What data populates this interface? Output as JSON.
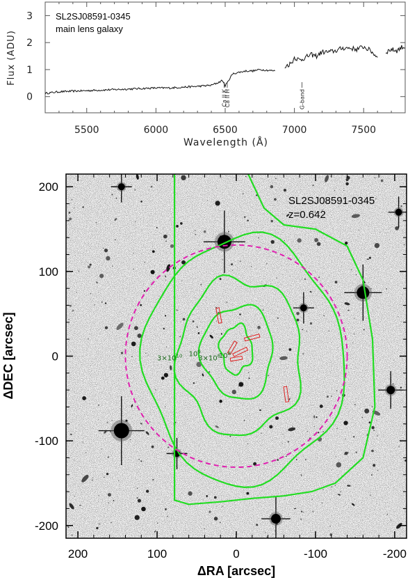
{
  "chart_data": [
    {
      "type": "line",
      "title": "",
      "annotation_lines": [
        "SL2SJ08591-0345",
        "main lens galaxy"
      ],
      "xlabel": "Wavelength (Å)",
      "ylabel": "Flux (ADU)",
      "xlim": [
        5200,
        7800
      ],
      "ylim": [
        -0.6,
        3.5
      ],
      "xticks": [
        5500,
        6000,
        6500,
        7000,
        7500
      ],
      "yticks": [
        0,
        1,
        2,
        3
      ],
      "line_labels": [
        {
          "text": "Ca II K",
          "x": 6493
        },
        {
          "text": "Ca II H",
          "x": 6515
        },
        {
          "text": "G-band",
          "x": 7055
        }
      ],
      "series": [
        {
          "segments": [
            {
              "x": [
                5200,
                5300,
                5400,
                5500,
                5600,
                5700,
                5800,
                5900,
                6000,
                6100,
                6200,
                6300,
                6400,
                6450,
                6480,
                6500,
                6520,
                6540,
                6560,
                6600,
                6650,
                6700,
                6750,
                6800,
                6860
              ],
              "y": [
                0.12,
                0.18,
                0.2,
                0.22,
                0.24,
                0.26,
                0.28,
                0.3,
                0.32,
                0.32,
                0.35,
                0.38,
                0.42,
                0.52,
                0.6,
                0.4,
                0.55,
                0.75,
                0.85,
                0.9,
                0.95,
                0.95,
                1.0,
                0.98,
                0.95
              ]
            },
            {
              "x": [
                6930,
                6980,
                7000,
                7040,
                7080,
                7120,
                7160,
                7200,
                7250,
                7300,
                7350,
                7400,
                7450,
                7500,
                7550,
                7600
              ],
              "y": [
                1.1,
                1.25,
                1.45,
                1.35,
                1.45,
                1.55,
                1.5,
                1.65,
                1.65,
                1.7,
                1.8,
                1.8,
                1.75,
                1.85,
                1.7,
                1.45
              ]
            },
            {
              "x": [
                7660,
                7700,
                7740,
                7780,
                7800
              ],
              "y": [
                1.65,
                1.75,
                1.7,
                1.85,
                1.8
              ]
            }
          ]
        }
      ]
    },
    {
      "type": "scatter",
      "title": "",
      "annotation_lines": [
        "SL2SJ08591-0345",
        "z=0.642"
      ],
      "xlabel": "ΔRA [arcsec]",
      "ylabel": "ΔDEC [arcsec]",
      "xlim": [
        215,
        -215
      ],
      "ylim": [
        -215,
        215
      ],
      "xticks": [
        200,
        100,
        0,
        -100,
        -200
      ],
      "yticks": [
        -200,
        -100,
        0,
        100,
        200
      ],
      "contour_labels": [
        "3×10^10",
        "10^9",
        "3×10^8",
        "10^8"
      ],
      "circle": {
        "center": [
          0,
          0
        ],
        "radius": 140,
        "color": "#e020b0",
        "style": "dashed"
      },
      "contour_color": "#22dd22",
      "slit_color": "#dd2222",
      "stars": [
        {
          "x": 15,
          "y": 135,
          "r": 10
        },
        {
          "x": -160,
          "y": 75,
          "r": 9
        },
        {
          "x": 145,
          "y": -88,
          "r": 11
        },
        {
          "x": -50,
          "y": -192,
          "r": 7
        },
        {
          "x": -195,
          "y": -40,
          "r": 6
        },
        {
          "x": 145,
          "y": 200,
          "r": 5
        },
        {
          "x": 75,
          "y": -115,
          "r": 5
        },
        {
          "x": -205,
          "y": 170,
          "r": 5
        },
        {
          "x": -85,
          "y": 57,
          "r": 5
        }
      ]
    }
  ]
}
